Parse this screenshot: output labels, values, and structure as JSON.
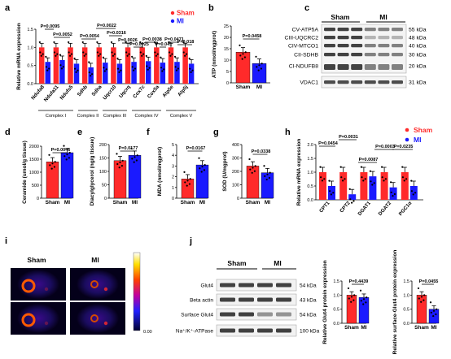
{
  "figure": {
    "panel_labels": [
      "a",
      "b",
      "c",
      "d",
      "e",
      "f",
      "g",
      "h",
      "i",
      "j"
    ],
    "colors": {
      "sham": "#ff2a2a",
      "mi": "#1a1aff",
      "band": "#222222"
    }
  },
  "chart_data": [
    {
      "panel": "a",
      "type": "bar",
      "title": "",
      "ylabel": "Relative mRNA expression",
      "ylim": [
        0,
        1.5
      ],
      "yticks": [
        "0.0",
        "0.5",
        "1.0",
        "1.5"
      ],
      "categories": [
        "Ndufa8",
        "Ndufa11",
        "Ndufs5",
        "Sdhb",
        "Sdha",
        "Uqcr10",
        "Uqcrq",
        "Cox7c",
        "Cox5a",
        "Atp5e",
        "Atp5j"
      ],
      "groups": [
        "Complex I",
        "Complex II",
        "Complex III",
        "Complex IV",
        "Complex V"
      ],
      "legend": [
        "Sham",
        "MI"
      ],
      "series": [
        {
          "name": "Sham",
          "values": [
            1.0,
            1.0,
            1.0,
            1.0,
            1.0,
            1.0,
            1.0,
            1.0,
            1.0,
            1.0,
            1.0
          ]
        },
        {
          "name": "MI",
          "values": [
            0.6,
            0.65,
            0.55,
            0.45,
            0.58,
            0.55,
            0.6,
            0.62,
            0.58,
            0.6,
            0.55
          ]
        }
      ],
      "pvalues": [
        "P=0.0095",
        "P=0.0052",
        "P=0.0054",
        "P=0.0022",
        "P=0.0316",
        "P=0.0026",
        "P=0.0025",
        "P=0.0038",
        "P=0.041",
        "P=0.0471",
        "P=0.018"
      ]
    },
    {
      "panel": "b",
      "type": "bar",
      "ylabel": "ATP (nmol/mgprot)",
      "ylim": [
        0,
        25
      ],
      "yticks": [
        "0",
        "5",
        "10",
        "15",
        "20",
        "25"
      ],
      "categories": [
        "Sham",
        "MI"
      ],
      "values": [
        13.5,
        8.5
      ],
      "pvalue": "P=0.0458"
    },
    {
      "panel": "c",
      "type": "table",
      "groups": [
        "Sham",
        "MI"
      ],
      "rows": [
        {
          "label": "CV-ATP5A",
          "kda": "55 kDa"
        },
        {
          "label": "CIII-UQCRC2",
          "kda": "48 kDa"
        },
        {
          "label": "CIV-MTCO1",
          "kda": "40 kDa"
        },
        {
          "label": "CII-SDHB",
          "kda": "30 kDa"
        },
        {
          "label": "CI-NDUFB8",
          "kda": "20 kDa"
        },
        {
          "label": "VDAC1",
          "kda": "31 kDa"
        }
      ]
    },
    {
      "panel": "d",
      "type": "bar",
      "ylabel": "Ceramide (umol/g tissue)",
      "ylim": [
        0,
        2000
      ],
      "yticks": [
        "0",
        "500",
        "1000",
        "1500",
        "2000"
      ],
      "categories": [
        "Sham",
        "MI"
      ],
      "values": [
        1400,
        1750
      ],
      "pvalue": "P=0.0046"
    },
    {
      "panel": "e",
      "type": "bar",
      "ylabel": "Diacylglycerol (ng/g tissue)",
      "ylim": [
        0,
        200
      ],
      "yticks": [
        "0",
        "50",
        "100",
        "150",
        "200"
      ],
      "categories": [
        "Sham",
        "MI"
      ],
      "values": [
        140,
        160
      ],
      "pvalue": "P=0.0177"
    },
    {
      "panel": "f",
      "type": "bar",
      "ylabel": "MDA (nmol/mgprot)",
      "ylim": [
        0,
        5
      ],
      "yticks": [
        "0",
        "1",
        "2",
        "3",
        "4",
        "5"
      ],
      "categories": [
        "Sham",
        "MI"
      ],
      "values": [
        1.8,
        3.1
      ],
      "pvalue": "P=0.0167"
    },
    {
      "panel": "g",
      "type": "bar",
      "ylabel": "SOD (U/mgprot)",
      "ylim": [
        0,
        400
      ],
      "yticks": [
        "0",
        "100",
        "200",
        "300",
        "400"
      ],
      "categories": [
        "Sham",
        "MI"
      ],
      "values": [
        240,
        190
      ],
      "pvalue": "P=0.0338"
    },
    {
      "panel": "h",
      "type": "bar",
      "ylabel": "Relative mRNA expression",
      "ylim": [
        0,
        2.0
      ],
      "yticks": [
        "0.0",
        "0.5",
        "1.0",
        "1.5",
        "2.0"
      ],
      "categories": [
        "CPT1",
        "CPT2",
        "DGAT1",
        "DGAT2",
        "PGC1α"
      ],
      "legend": [
        "Sham",
        "MI"
      ],
      "series": [
        {
          "name": "Sham",
          "values": [
            1.0,
            1.0,
            1.0,
            1.0,
            1.0
          ]
        },
        {
          "name": "MI",
          "values": [
            0.5,
            0.2,
            0.85,
            0.45,
            0.5
          ]
        }
      ],
      "pvalues": [
        "P=0.0454",
        "P=0.0031",
        "P=0.0087",
        "P=0.0003",
        "P=0.0235"
      ]
    },
    {
      "panel": "i",
      "type": "heatmap",
      "columns": [
        "Sham",
        "MI"
      ],
      "scale_labels": [
        "0.00"
      ]
    },
    {
      "panel": "j",
      "type": "table",
      "groups": [
        "Sham",
        "MI"
      ],
      "rows": [
        {
          "label": "Glut4",
          "kda": "54 kDa"
        },
        {
          "label": "Beta actin",
          "kda": "43 kDa"
        },
        {
          "label": "Surface Glut4",
          "kda": "54 kDa"
        },
        {
          "label": "Na⁺/K⁺-ATPase",
          "kda": "100 kDa"
        }
      ]
    },
    {
      "panel": "j1",
      "type": "bar",
      "ylabel": "Relative Glut4 protein expression",
      "ylim": [
        0,
        1.5
      ],
      "yticks": [
        "0.0",
        "0.5",
        "1.0",
        "1.5"
      ],
      "categories": [
        "Sham",
        "MI"
      ],
      "values": [
        1.0,
        0.92
      ],
      "pvalue": "P=0.4439"
    },
    {
      "panel": "j2",
      "type": "bar",
      "ylabel": "Relative surface-Glut4 protein expression",
      "ylim": [
        0,
        1.5
      ],
      "yticks": [
        "0.0",
        "0.5",
        "1.0",
        "1.5"
      ],
      "categories": [
        "Sham",
        "MI"
      ],
      "values": [
        1.0,
        0.5
      ],
      "pvalue": "P=0.0455"
    }
  ]
}
